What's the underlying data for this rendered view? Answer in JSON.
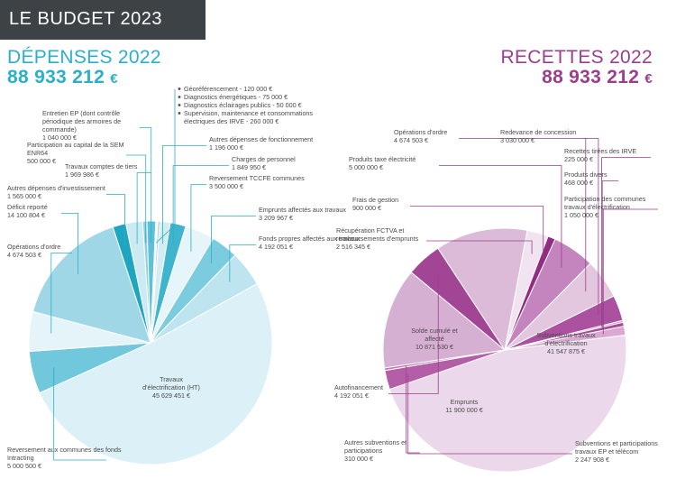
{
  "banner": {
    "title": "LE BUDGET 2023"
  },
  "depenses": {
    "title": "DÉPENSES 2022",
    "total": "88 933 212",
    "currency": "€"
  },
  "recettes": {
    "title": "RECETTES 2022",
    "total": "88 933 212",
    "currency": "€"
  },
  "chart_data": [
    {
      "type": "pie",
      "title": "DÉPENSES 2022",
      "total": 88933212,
      "slices": [
        {
          "label": "Travaux d'électrification (HT)",
          "value": 45629451,
          "value_text": "45 629 451 €",
          "color": "#dcf0f7"
        },
        {
          "label": "Reversement aux communes des fonds Intracting",
          "value": 5000500,
          "value_text": "5 000 500 €",
          "color": "#71c7dc"
        },
        {
          "label": "Opérations d'ordre",
          "value": 4674503,
          "value_text": "4 674 503 €",
          "color": "#e4f4f9"
        },
        {
          "label": "Déficit reporté",
          "value": 14100804,
          "value_text": "14 100 804 €",
          "color": "#9fd7e6"
        },
        {
          "label": "Autres dépenses d'investissement",
          "value": 1565000,
          "value_text": "1 565 000 €",
          "color": "#1ea5c0"
        },
        {
          "label": "Travaux comptes de tiers",
          "value": 1969986,
          "value_text": "1 969 986 €",
          "color": "#cbeaf2"
        },
        {
          "label": "Participation au capital de la SEM ENR64",
          "value": 500000,
          "value_text": "500 000 €",
          "color": "#8ed0e2"
        },
        {
          "label": "Entretien EP (dont contrôle périodique des armoires de commande)",
          "value": 1040000,
          "value_text": "1 040 000 €",
          "color": "#5ec1d8"
        },
        {
          "label": "Géoréférencement - 120 000 €",
          "value": 120000,
          "color": "#2aa9c4"
        },
        {
          "label": "Diagnostics énergétiques - 75 000 €",
          "value": 75000,
          "color": "#b5e2ee"
        },
        {
          "label": "Diagnostics éclairages publics - 50 000 €",
          "value": 50000,
          "color": "#48b8d0"
        },
        {
          "label": "Supervision, maintenance et consommations électriques des IRVE - 260 000 €",
          "value": 260000,
          "color": "#9fd7e6"
        },
        {
          "label": "Autres dépenses de fonctionnement",
          "value": 1196000,
          "value_text": "1 196 000 €",
          "color": "#d3edf5"
        },
        {
          "label": "Charges de personnel",
          "value": 1849950,
          "value_text": "1 849 950 €",
          "color": "#3fb4cd"
        },
        {
          "label": "Reversement TCCFE communes",
          "value": 3500000,
          "value_text": "3 500 000 €",
          "color": "#e6f5fa"
        },
        {
          "label": "Emprunts affectés aux travaux",
          "value": 3209967,
          "value_text": "3 209 967 €",
          "color": "#7ccce0"
        },
        {
          "label": "Fonds propres affectés aux travaux",
          "value": 4192051,
          "value_text": "4 192 051 €",
          "color": "#bde4ef"
        }
      ]
    },
    {
      "type": "pie",
      "title": "RECETTES 2022",
      "total": 88933212,
      "slices": [
        {
          "label": "Subventions travaux d'électrification",
          "value": 41547875,
          "value_text": "41 547 875 €",
          "color": "#ebd8ea"
        },
        {
          "label": "Subventions et participations travaux EP et télécom",
          "value": 2247908,
          "value_text": "2 247 908 €",
          "color": "#b45ea8"
        },
        {
          "label": "Autres subventions et participations",
          "value": 310000,
          "value_text": "310 000 €",
          "color": "#c07ab8"
        },
        {
          "label": "Emprunts",
          "value": 11900000,
          "value_text": "11 900 000 €",
          "color": "#d6b0d2"
        },
        {
          "label": "Autofinancement",
          "value": 4192051,
          "value_text": "4 192 051 €",
          "color": "#a24595"
        },
        {
          "label": "Solde cumulé et affecté",
          "value": 10871530,
          "value_text": "10 871 530 €",
          "color": "#dbbbd8"
        },
        {
          "label": "Récupération FCTVA et remboursements d'emprunts",
          "value": 2516345,
          "value_text": "2 516 345 €",
          "color": "#f1e4f0"
        },
        {
          "label": "Frais de gestion",
          "value": 900000,
          "value_text": "900 000 €",
          "color": "#922b84"
        },
        {
          "label": "Produits taxe électricité",
          "value": 5000000,
          "value_text": "5 000 000 €",
          "color": "#c484bd"
        },
        {
          "label": "Opérations d'ordre",
          "value": 4674503,
          "value_text": "4 674 503 €",
          "color": "#e2c7df"
        },
        {
          "label": "Redevance de concession",
          "value": 3030000,
          "value_text": "3 030 000 €",
          "color": "#ab51a0"
        },
        {
          "label": "Recettes tirées des IRVE",
          "value": 225000,
          "value_text": "225 000 €",
          "color": "#cc96c6"
        },
        {
          "label": "Produits divers",
          "value": 468000,
          "value_text": "468 000 €",
          "color": "#a54d99"
        },
        {
          "label": "Participation des communes travaux d'électrification",
          "value": 1050000,
          "value_text": "1 050 000 €",
          "color": "#d9a8d3"
        }
      ]
    }
  ]
}
